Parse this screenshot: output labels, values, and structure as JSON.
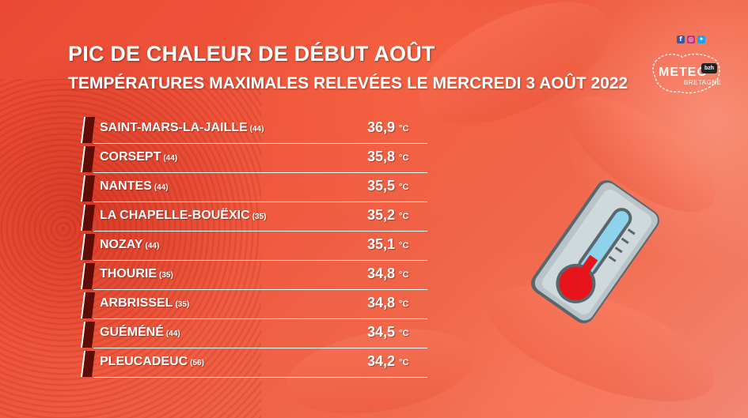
{
  "header": {
    "title": "PIC DE CHALEUR DE DÉBUT AOÛT",
    "subtitle": "TEMPÉRATURES MAXIMALES RELEVÉES LE MERCREDI 3 AOÛT 2022"
  },
  "unit": "°C",
  "rows": [
    {
      "town": "SAINT-MARS-LA-JAILLE",
      "dept": "(44)",
      "temp": "36,9"
    },
    {
      "town": "CORSEPT",
      "dept": "(44)",
      "temp": "35,8"
    },
    {
      "town": "NANTES",
      "dept": "(44)",
      "temp": "35,5"
    },
    {
      "town": "LA CHAPELLE-BOUËXIC",
      "dept": "(35)",
      "temp": "35,2"
    },
    {
      "town": "NOZAY",
      "dept": "(44)",
      "temp": "35,1"
    },
    {
      "town": "THOURIE",
      "dept": "(35)",
      "temp": "34,8"
    },
    {
      "town": "ARBRISSEL",
      "dept": "(35)",
      "temp": "34,8"
    },
    {
      "town": "GUÉMÉNÉ",
      "dept": "(44)",
      "temp": "34,5"
    },
    {
      "town": "PLEUCADEUC",
      "dept": "(56)",
      "temp": "34,2"
    }
  ],
  "logo": {
    "word": "METEO",
    "sub": "BRETAGNE",
    "badge": "bzh"
  },
  "social": {
    "icons": [
      "facebook-icon",
      "instagram-icon",
      "twitter-icon"
    ],
    "colors": {
      "facebook": "#3b5998",
      "instagram": "#c13584",
      "twitter": "#1da1f2"
    }
  },
  "thermometer": {
    "icon": "thermometer-icon",
    "bulb_color": "#e8141b",
    "tube_color": "#8ed3ec",
    "body_color": "#b9c4c8"
  },
  "colors": {
    "background": "#ee5a3e",
    "marker": "#5e0c05",
    "text": "#ffffff"
  }
}
